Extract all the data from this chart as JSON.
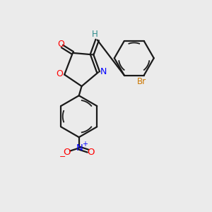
{
  "bg_color": "#ebebeb",
  "bond_color": "#1a1a1a",
  "atom_colors": {
    "O": "#ff0000",
    "N": "#0000ff",
    "Br": "#cc7700",
    "H": "#2e8b8b"
  },
  "lw": 1.6,
  "lw_inner": 1.3
}
